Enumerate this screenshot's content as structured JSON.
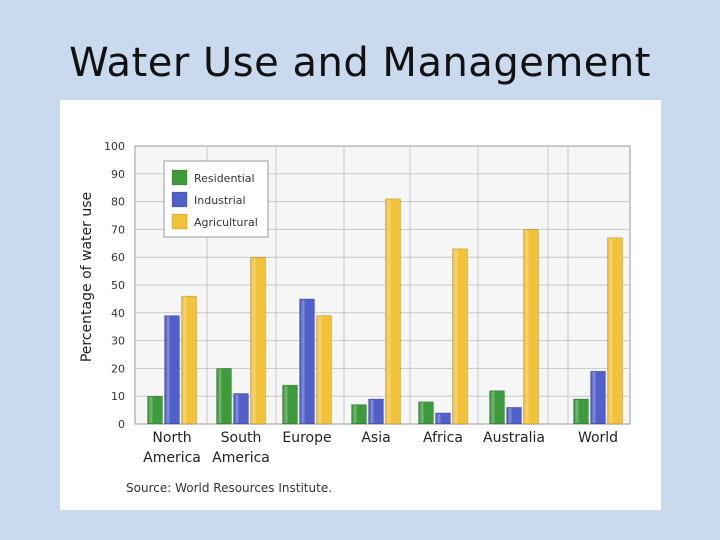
{
  "slide": {
    "title": "Water Use and Management"
  },
  "chart_data": {
    "type": "bar",
    "title": "",
    "xlabel": "",
    "ylabel": "Percentage of water use",
    "ylim": [
      0,
      100
    ],
    "yticks": [
      0,
      10,
      20,
      30,
      40,
      50,
      60,
      70,
      80,
      90,
      100
    ],
    "grid": true,
    "legend_position": "top-left",
    "categories": [
      [
        "North",
        "America"
      ],
      [
        "South",
        "America"
      ],
      [
        "Europe"
      ],
      [
        "Asia"
      ],
      [
        "Africa"
      ],
      [
        "Australia"
      ],
      [
        "World"
      ]
    ],
    "series": [
      {
        "name": "Residential",
        "color": "#3e9a3a",
        "values": [
          10,
          20,
          14,
          7,
          8,
          12,
          9
        ]
      },
      {
        "name": "Industrial",
        "color": "#5060c8",
        "values": [
          39,
          11,
          45,
          9,
          4,
          6,
          19
        ]
      },
      {
        "name": "Agricultural",
        "color": "#f2c23a",
        "values": [
          46,
          60,
          39,
          81,
          63,
          70,
          67
        ]
      }
    ],
    "source": "Source: World Resources Institute."
  }
}
